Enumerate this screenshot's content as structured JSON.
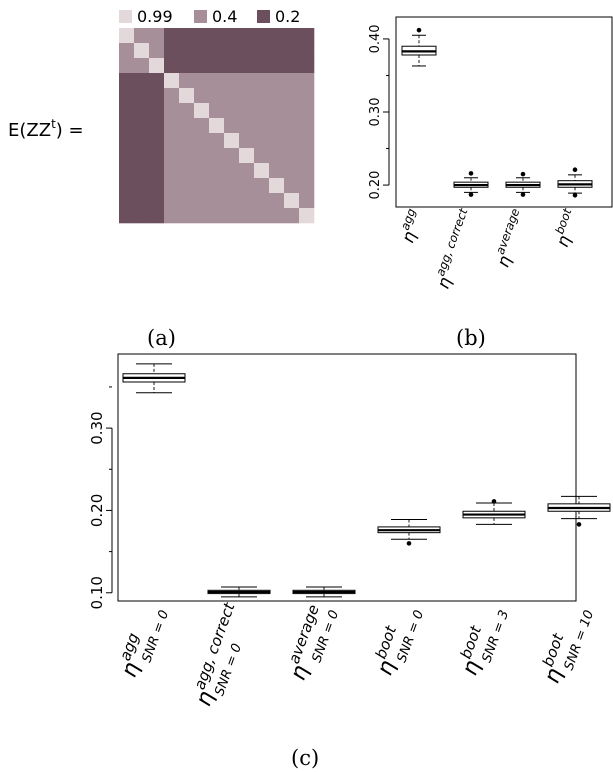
{
  "chart_data": [
    {
      "panel": "(a)",
      "type": "heatmap",
      "equation_label": "E(ZZ",
      "equation_sup": "t",
      "equation_suffix": ") =",
      "legend": [
        {
          "value": "0.99",
          "color": "#e3d8da"
        },
        {
          "value": "0.4",
          "color": "#a78f9a"
        },
        {
          "value": "0.2",
          "color": "#6b4f5c"
        }
      ],
      "size": 13,
      "blocks": [
        3,
        10
      ],
      "diagonal": 0.99,
      "within_block": 0.4,
      "between_block": 0.2
    },
    {
      "panel": "(b)",
      "type": "boxplot",
      "ylim": [
        0.17,
        0.43
      ],
      "yticks": [
        0.2,
        0.3,
        0.4
      ],
      "ytick_labels": [
        "0.20",
        "0.30",
        "0.40"
      ],
      "minor_yticks": [
        0.25,
        0.35
      ],
      "categories": [
        {
          "base": "η",
          "sup": "agg",
          "sub": "",
          "median": 0.383,
          "q1": 0.378,
          "q3": 0.39,
          "whisker_low": 0.363,
          "whisker_high": 0.405,
          "outliers": [
            0.412
          ]
        },
        {
          "base": "η",
          "sup": "agg, correct",
          "sub": "",
          "median": 0.2,
          "q1": 0.197,
          "q3": 0.204,
          "whisker_low": 0.19,
          "whisker_high": 0.21,
          "outliers": [
            0.187,
            0.216
          ]
        },
        {
          "base": "η",
          "sup": "average",
          "sub": "",
          "median": 0.2,
          "q1": 0.197,
          "q3": 0.204,
          "whisker_low": 0.19,
          "whisker_high": 0.21,
          "outliers": [
            0.187,
            0.215
          ]
        },
        {
          "base": "η",
          "sup": "boot",
          "sub": "",
          "median": 0.201,
          "q1": 0.197,
          "q3": 0.206,
          "whisker_low": 0.189,
          "whisker_high": 0.214,
          "outliers": [
            0.186,
            0.221
          ]
        }
      ]
    },
    {
      "panel": "(c)",
      "type": "boxplot",
      "ylim": [
        0.09,
        0.39
      ],
      "yticks": [
        0.1,
        0.2,
        0.3
      ],
      "ytick_labels": [
        "0.10",
        "0.20",
        "0.30"
      ],
      "minor_yticks": [
        0.15,
        0.25,
        0.35
      ],
      "categories": [
        {
          "base": "η",
          "sup": "agg",
          "sub": "SNR = 0",
          "median": 0.361,
          "q1": 0.356,
          "q3": 0.366,
          "whisker_low": 0.343,
          "whisker_high": 0.378,
          "outliers": []
        },
        {
          "base": "η",
          "sup": "agg, correct",
          "sub": "SNR = 0",
          "median": 0.101,
          "q1": 0.099,
          "q3": 0.103,
          "whisker_low": 0.095,
          "whisker_high": 0.107,
          "outliers": []
        },
        {
          "base": "η",
          "sup": "average",
          "sub": "SNR = 0",
          "median": 0.101,
          "q1": 0.099,
          "q3": 0.103,
          "whisker_low": 0.095,
          "whisker_high": 0.107,
          "outliers": []
        },
        {
          "base": "η",
          "sup": "boot",
          "sub": "SNR = 0",
          "median": 0.176,
          "q1": 0.173,
          "q3": 0.18,
          "whisker_low": 0.165,
          "whisker_high": 0.189,
          "outliers": [
            0.16
          ]
        },
        {
          "base": "η",
          "sup": "boot",
          "sub": "SNR = 3",
          "median": 0.195,
          "q1": 0.191,
          "q3": 0.199,
          "whisker_low": 0.183,
          "whisker_high": 0.209,
          "outliers": [
            0.211
          ]
        },
        {
          "base": "η",
          "sup": "boot",
          "sub": "SNR = 10",
          "median": 0.203,
          "q1": 0.199,
          "q3": 0.208,
          "whisker_low": 0.19,
          "whisker_high": 0.217,
          "outliers": [
            0.183
          ]
        }
      ]
    }
  ]
}
